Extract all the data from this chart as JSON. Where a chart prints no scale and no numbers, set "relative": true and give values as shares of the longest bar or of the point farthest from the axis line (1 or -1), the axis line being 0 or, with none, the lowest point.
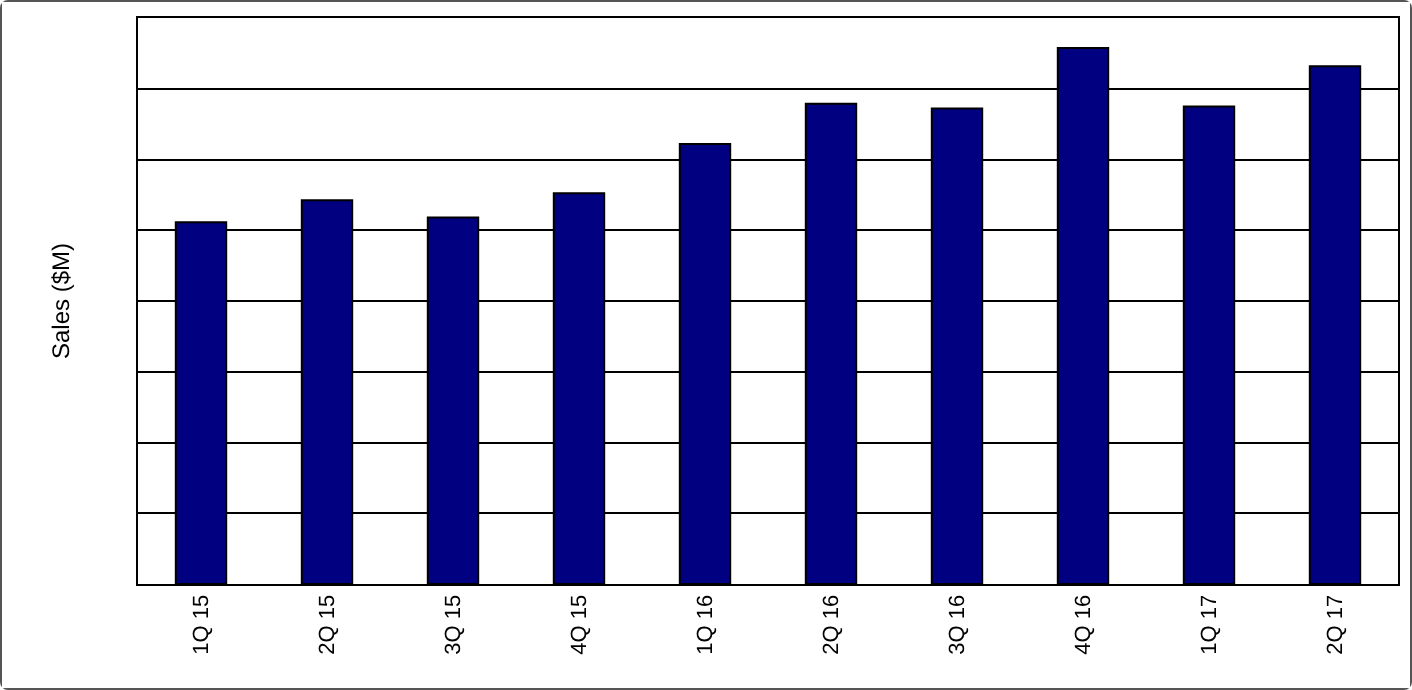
{
  "chart_data": {
    "type": "bar",
    "ylabel": "Sales ($M)",
    "relative": true,
    "categories": [
      "1Q 15",
      "2Q 15",
      "3Q 15",
      "4Q 15",
      "1Q 16",
      "2Q 16",
      "3Q 16",
      "4Q 16",
      "1Q 17",
      "2Q 17"
    ],
    "values": [
      0.675,
      0.716,
      0.684,
      0.729,
      0.821,
      0.896,
      0.887,
      1,
      0.891,
      0.966
    ],
    "color": "#000080",
    "grid": "y"
  }
}
